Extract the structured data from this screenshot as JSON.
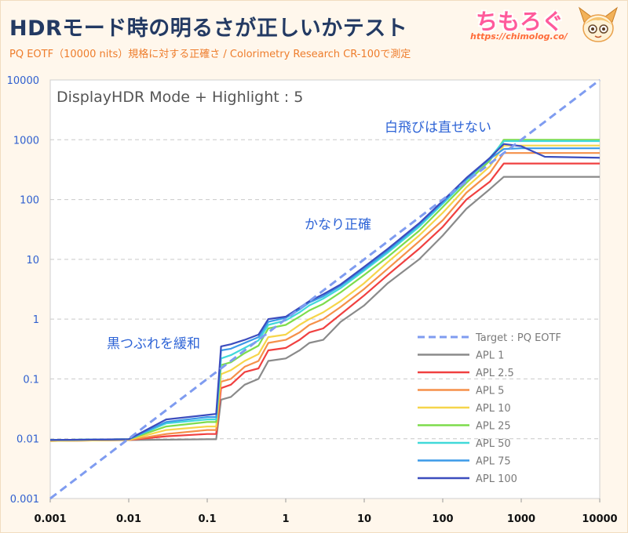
{
  "header": {
    "title": "HDRモード時の明るさが正しいかテスト",
    "subtitle": "PQ EOTF（10000 nits）規格に対する正確さ / Colorimetry Research CR-100で測定"
  },
  "brand": {
    "name": "ちもろぐ",
    "url": "https://chimolog.co/"
  },
  "chart_data": {
    "type": "line",
    "title": "DisplayHDR Mode + Highlight : 5",
    "x_scale": "log",
    "y_scale": "log",
    "xlim": [
      0.001,
      10000
    ],
    "ylim": [
      0.001,
      10000
    ],
    "x_ticks": [
      "0.001",
      "0.01",
      "0.1",
      "1",
      "10",
      "100",
      "1000",
      "10000"
    ],
    "y_ticks": [
      "0.001",
      "0.01",
      "0.1",
      "1",
      "10",
      "100",
      "1000",
      "10000"
    ],
    "annotations": [
      "白飛びは直せない",
      "かなり正確",
      "黒つぶれを緩和"
    ],
    "series": [
      {
        "name": "Target : PQ EOTF",
        "color": "#7f9cf0",
        "dashed": true,
        "points": [
          [
            0.001,
            0.001
          ],
          [
            10000,
            10000
          ]
        ]
      },
      {
        "name": "APL 1",
        "color": "#8a8a8a",
        "points": [
          [
            0.001,
            0.0092
          ],
          [
            0.01,
            0.0095
          ],
          [
            0.1,
            0.0098
          ],
          [
            0.13,
            0.0098
          ],
          [
            0.15,
            0.045
          ],
          [
            0.2,
            0.05
          ],
          [
            0.3,
            0.08
          ],
          [
            0.45,
            0.1
          ],
          [
            0.6,
            0.2
          ],
          [
            1,
            0.22
          ],
          [
            1.5,
            0.3
          ],
          [
            2,
            0.4
          ],
          [
            3,
            0.45
          ],
          [
            5,
            0.9
          ],
          [
            10,
            1.7
          ],
          [
            20,
            4
          ],
          [
            50,
            10
          ],
          [
            100,
            25
          ],
          [
            200,
            70
          ],
          [
            400,
            150
          ],
          [
            600,
            240
          ],
          [
            1000,
            240
          ],
          [
            10000,
            240
          ]
        ]
      },
      {
        "name": "APL 2.5",
        "color": "#f04040",
        "points": [
          [
            0.001,
            0.0092
          ],
          [
            0.01,
            0.0095
          ],
          [
            0.03,
            0.011
          ],
          [
            0.1,
            0.012
          ],
          [
            0.13,
            0.012
          ],
          [
            0.15,
            0.07
          ],
          [
            0.2,
            0.08
          ],
          [
            0.3,
            0.13
          ],
          [
            0.45,
            0.15
          ],
          [
            0.6,
            0.3
          ],
          [
            1,
            0.33
          ],
          [
            1.5,
            0.45
          ],
          [
            2,
            0.6
          ],
          [
            3,
            0.7
          ],
          [
            5,
            1.2
          ],
          [
            10,
            2.5
          ],
          [
            20,
            5.5
          ],
          [
            50,
            15
          ],
          [
            100,
            35
          ],
          [
            200,
            100
          ],
          [
            400,
            200
          ],
          [
            600,
            400
          ],
          [
            1000,
            400
          ],
          [
            10000,
            400
          ]
        ]
      },
      {
        "name": "APL 5",
        "color": "#f59049",
        "points": [
          [
            0.001,
            0.0092
          ],
          [
            0.01,
            0.0095
          ],
          [
            0.03,
            0.012
          ],
          [
            0.1,
            0.014
          ],
          [
            0.13,
            0.014
          ],
          [
            0.15,
            0.09
          ],
          [
            0.2,
            0.1
          ],
          [
            0.3,
            0.16
          ],
          [
            0.45,
            0.2
          ],
          [
            0.6,
            0.4
          ],
          [
            1,
            0.45
          ],
          [
            1.5,
            0.6
          ],
          [
            2,
            0.8
          ],
          [
            3,
            1
          ],
          [
            5,
            1.6
          ],
          [
            10,
            3.2
          ],
          [
            20,
            7
          ],
          [
            50,
            20
          ],
          [
            100,
            45
          ],
          [
            200,
            130
          ],
          [
            400,
            280
          ],
          [
            600,
            600
          ],
          [
            1000,
            600
          ],
          [
            10000,
            600
          ]
        ]
      },
      {
        "name": "APL 10",
        "color": "#f6d54a",
        "points": [
          [
            0.001,
            0.0092
          ],
          [
            0.01,
            0.0096
          ],
          [
            0.03,
            0.014
          ],
          [
            0.1,
            0.016
          ],
          [
            0.13,
            0.016
          ],
          [
            0.15,
            0.12
          ],
          [
            0.2,
            0.14
          ],
          [
            0.3,
            0.2
          ],
          [
            0.45,
            0.26
          ],
          [
            0.6,
            0.5
          ],
          [
            1,
            0.55
          ],
          [
            1.5,
            0.8
          ],
          [
            2,
            1
          ],
          [
            3,
            1.3
          ],
          [
            5,
            2
          ],
          [
            10,
            4
          ],
          [
            20,
            9
          ],
          [
            50,
            25
          ],
          [
            100,
            60
          ],
          [
            200,
            160
          ],
          [
            400,
            360
          ],
          [
            600,
            800
          ],
          [
            1000,
            800
          ],
          [
            10000,
            800
          ]
        ]
      },
      {
        "name": "APL 25",
        "color": "#7ddc4c",
        "points": [
          [
            0.001,
            0.0095
          ],
          [
            0.01,
            0.0098
          ],
          [
            0.03,
            0.016
          ],
          [
            0.1,
            0.019
          ],
          [
            0.13,
            0.019
          ],
          [
            0.15,
            0.17
          ],
          [
            0.2,
            0.19
          ],
          [
            0.3,
            0.27
          ],
          [
            0.45,
            0.36
          ],
          [
            0.6,
            0.7
          ],
          [
            1,
            0.8
          ],
          [
            1.5,
            1.1
          ],
          [
            2,
            1.4
          ],
          [
            3,
            1.8
          ],
          [
            5,
            2.8
          ],
          [
            10,
            5.5
          ],
          [
            20,
            11
          ],
          [
            50,
            30
          ],
          [
            100,
            75
          ],
          [
            200,
            190
          ],
          [
            400,
            450
          ],
          [
            600,
            1000
          ],
          [
            1000,
            1000
          ],
          [
            10000,
            1000
          ]
        ]
      },
      {
        "name": "APL 50",
        "color": "#41d9d9",
        "points": [
          [
            0.001,
            0.0095
          ],
          [
            0.01,
            0.0098
          ],
          [
            0.03,
            0.018
          ],
          [
            0.1,
            0.021
          ],
          [
            0.13,
            0.021
          ],
          [
            0.15,
            0.22
          ],
          [
            0.2,
            0.25
          ],
          [
            0.3,
            0.33
          ],
          [
            0.45,
            0.44
          ],
          [
            0.6,
            0.8
          ],
          [
            1,
            0.95
          ],
          [
            1.5,
            1.3
          ],
          [
            2,
            1.7
          ],
          [
            3,
            2.2
          ],
          [
            5,
            3.3
          ],
          [
            10,
            6.5
          ],
          [
            20,
            13
          ],
          [
            50,
            35
          ],
          [
            100,
            85
          ],
          [
            200,
            210
          ],
          [
            400,
            500
          ],
          [
            600,
            950
          ],
          [
            1000,
            950
          ],
          [
            10000,
            950
          ]
        ]
      },
      {
        "name": "APL 75",
        "color": "#3b9ae8",
        "points": [
          [
            0.001,
            0.0095
          ],
          [
            0.01,
            0.0098
          ],
          [
            0.03,
            0.019
          ],
          [
            0.1,
            0.023
          ],
          [
            0.13,
            0.023
          ],
          [
            0.15,
            0.3
          ],
          [
            0.2,
            0.32
          ],
          [
            0.3,
            0.4
          ],
          [
            0.45,
            0.5
          ],
          [
            0.6,
            0.9
          ],
          [
            1,
            1.05
          ],
          [
            1.5,
            1.45
          ],
          [
            2,
            1.9
          ],
          [
            3,
            2.4
          ],
          [
            5,
            3.6
          ],
          [
            10,
            7
          ],
          [
            20,
            14
          ],
          [
            50,
            38
          ],
          [
            100,
            90
          ],
          [
            200,
            220
          ],
          [
            400,
            480
          ],
          [
            600,
            700
          ],
          [
            1000,
            720
          ],
          [
            10000,
            720
          ]
        ]
      },
      {
        "name": "APL 100",
        "color": "#3c4dbe",
        "points": [
          [
            0.001,
            0.0095
          ],
          [
            0.01,
            0.0098
          ],
          [
            0.03,
            0.021
          ],
          [
            0.1,
            0.025
          ],
          [
            0.13,
            0.026
          ],
          [
            0.15,
            0.35
          ],
          [
            0.2,
            0.38
          ],
          [
            0.3,
            0.45
          ],
          [
            0.45,
            0.55
          ],
          [
            0.6,
            1
          ],
          [
            1,
            1.1
          ],
          [
            1.5,
            1.55
          ],
          [
            2,
            2
          ],
          [
            3,
            2.6
          ],
          [
            5,
            3.8
          ],
          [
            10,
            7.5
          ],
          [
            20,
            15
          ],
          [
            50,
            40
          ],
          [
            100,
            95
          ],
          [
            200,
            230
          ],
          [
            400,
            500
          ],
          [
            600,
            850
          ],
          [
            1000,
            780
          ],
          [
            2000,
            520
          ],
          [
            10000,
            500
          ]
        ]
      }
    ]
  }
}
